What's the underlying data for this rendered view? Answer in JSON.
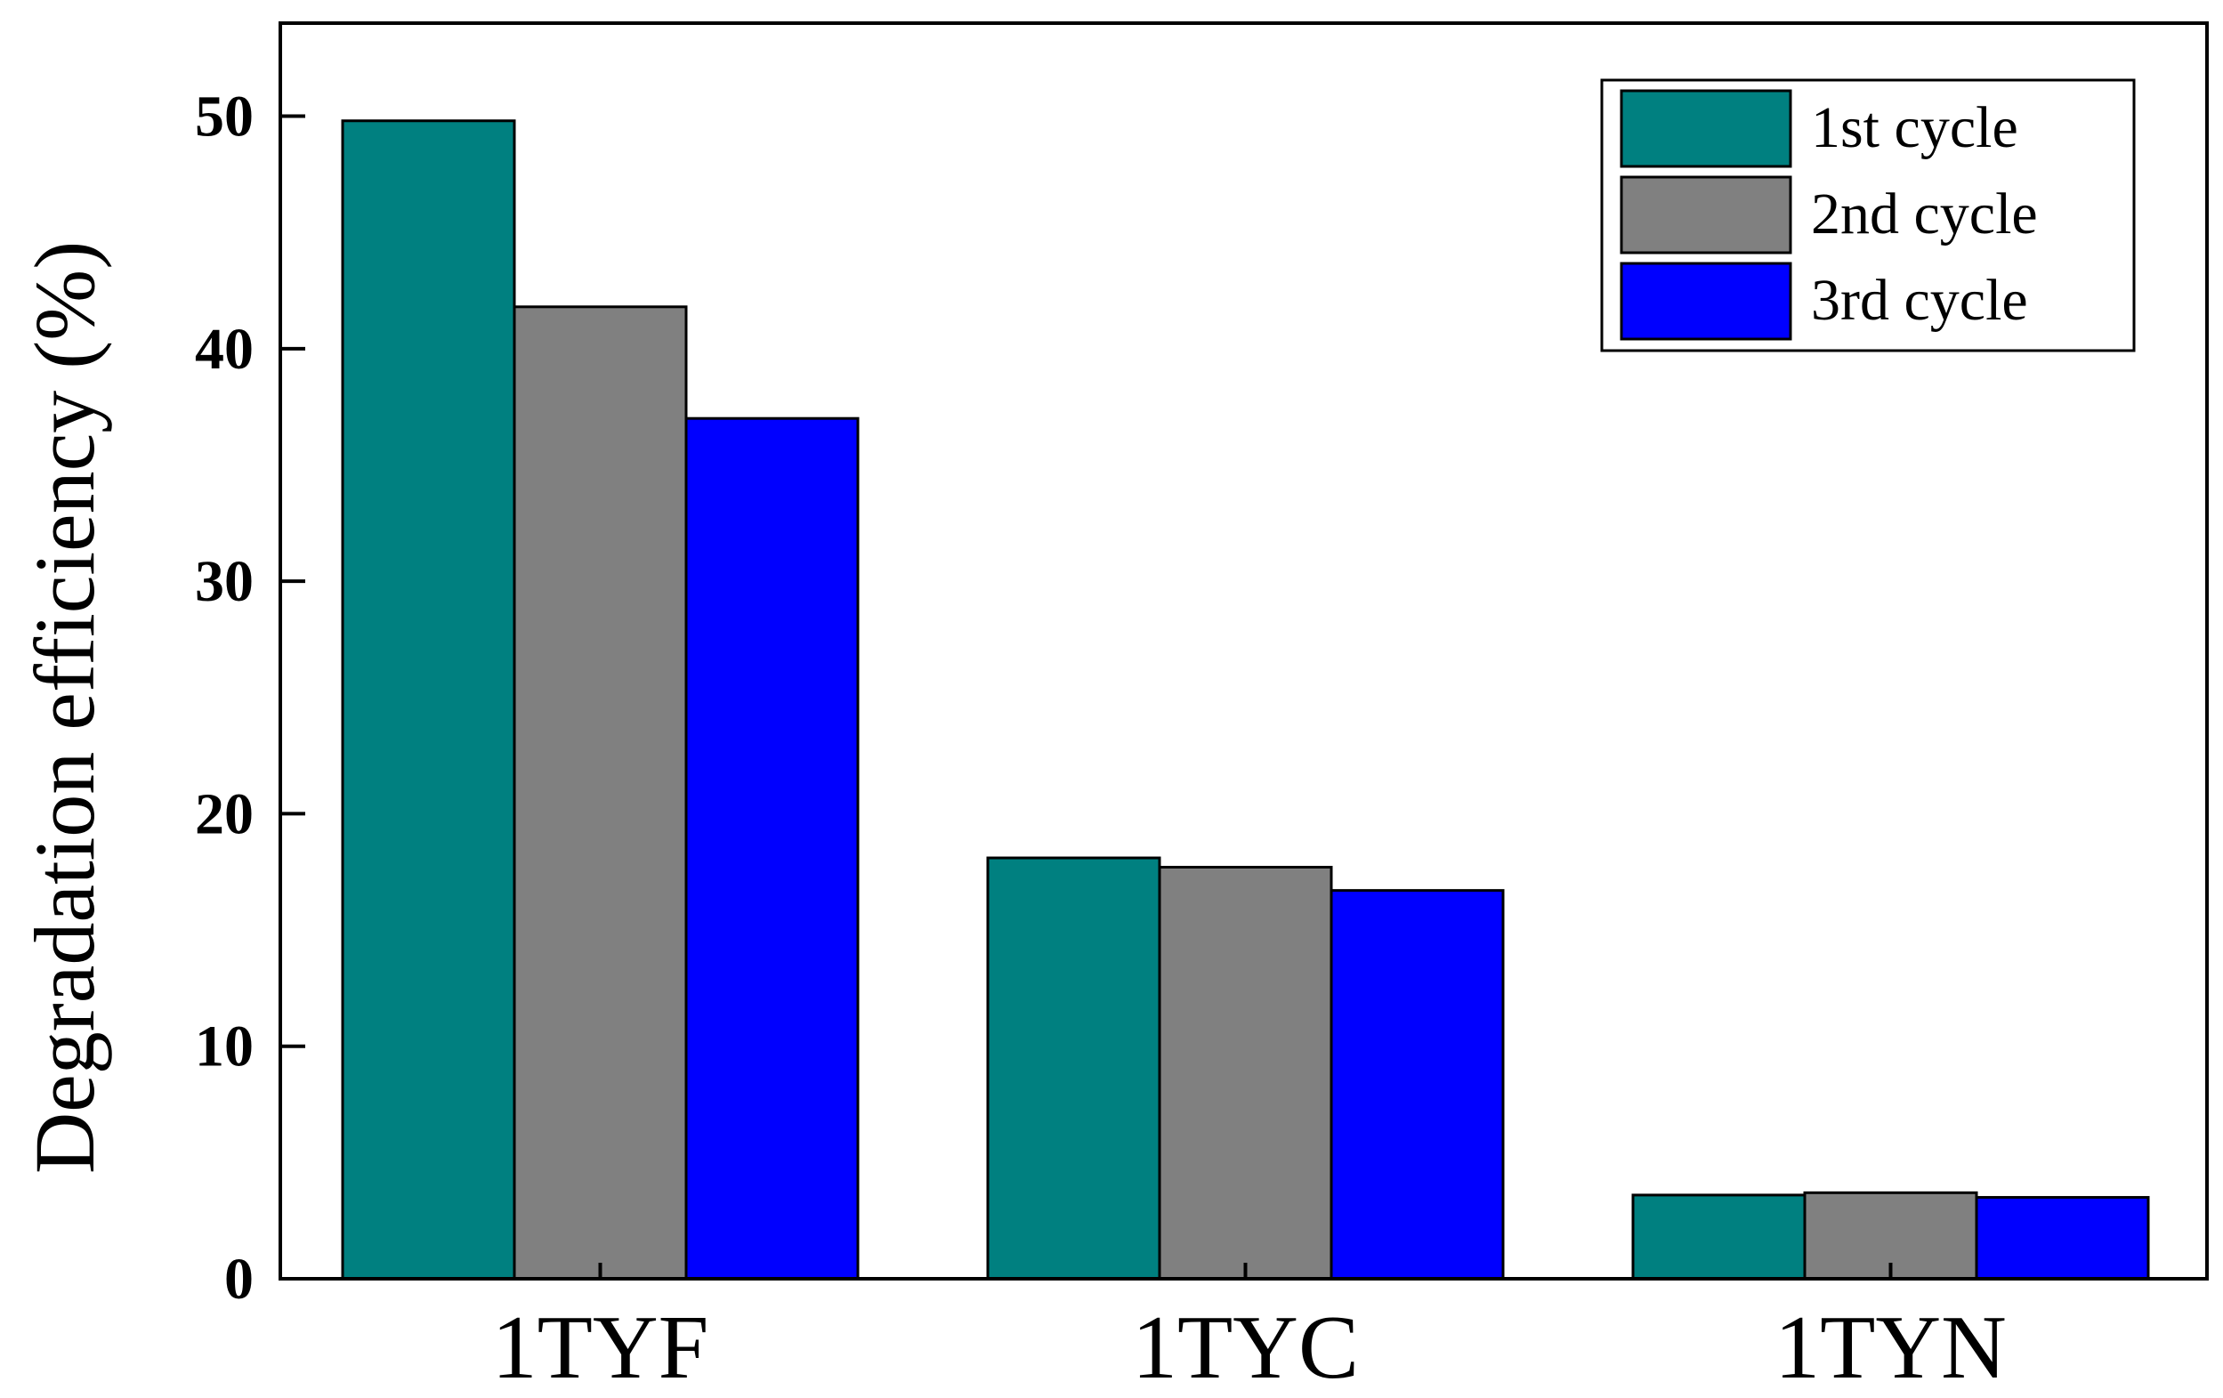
{
  "chart_data": {
    "type": "bar",
    "title": "",
    "xlabel": "",
    "ylabel": "Degradation efficiency (%)",
    "categories": [
      "1TYF",
      "1TYC",
      "1TYN"
    ],
    "series": [
      {
        "name": "1st cycle",
        "values": [
          49.8,
          18.1,
          3.6
        ],
        "color": "#008080"
      },
      {
        "name": "2nd cycle",
        "values": [
          41.8,
          17.7,
          3.7
        ],
        "color": "#808080"
      },
      {
        "name": "3rd cycle",
        "values": [
          37.0,
          16.7,
          3.5
        ],
        "color": "#0000FF"
      }
    ],
    "ylim": [
      0,
      54
    ],
    "yticks": [
      "0",
      "10",
      "20",
      "30",
      "40",
      "50"
    ],
    "grid": false,
    "legend_position": "top-right"
  }
}
